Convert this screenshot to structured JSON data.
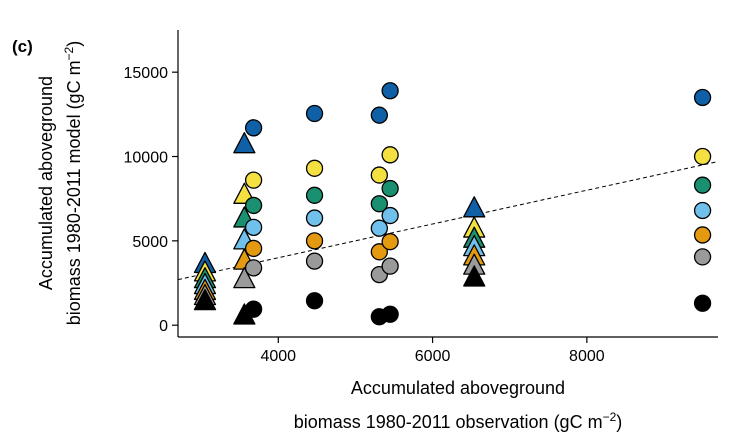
{
  "chart_data": {
    "type": "scatter",
    "panel_label": "(c)",
    "xlabel_line1": "Accumulated aboveground",
    "xlabel_line2": "biomass 1980-2011 observation (gC m",
    "ylabel_line1": "Accumulated aboveground",
    "ylabel_line2": "biomass 1980-2011 model (gC m",
    "unit_exponent": "−2",
    "unit_close": ")",
    "xlim": [
      2700,
      9700
    ],
    "ylim": [
      -700,
      17500
    ],
    "xticks": [
      4000,
      6000,
      8000
    ],
    "yticks": [
      0,
      5000,
      10000,
      15000
    ],
    "grid": false,
    "trend_line": {
      "style": "dashed",
      "x": [
        2700,
        9700
      ],
      "y": [
        2700,
        9700
      ]
    },
    "series": [
      {
        "color": "#1060a8",
        "values": [
          {
            "x": 3050,
            "y": 3600,
            "marker": "triangle"
          },
          {
            "x": 3560,
            "y": 10700,
            "marker": "triangle"
          },
          {
            "x": 3680,
            "y": 11700,
            "marker": "circle"
          },
          {
            "x": 4470,
            "y": 12550,
            "marker": "circle"
          },
          {
            "x": 5310,
            "y": 12450,
            "marker": "circle"
          },
          {
            "x": 5450,
            "y": 13900,
            "marker": "circle"
          },
          {
            "x": 6540,
            "y": 6900,
            "marker": "triangle"
          },
          {
            "x": 9500,
            "y": 13500,
            "marker": "circle"
          }
        ]
      },
      {
        "color": "#f4e040",
        "values": [
          {
            "x": 3050,
            "y": 3100,
            "marker": "triangle"
          },
          {
            "x": 3560,
            "y": 7700,
            "marker": "triangle"
          },
          {
            "x": 3680,
            "y": 8600,
            "marker": "circle"
          },
          {
            "x": 4470,
            "y": 9300,
            "marker": "circle"
          },
          {
            "x": 5310,
            "y": 8900,
            "marker": "circle"
          },
          {
            "x": 5450,
            "y": 10100,
            "marker": "circle"
          },
          {
            "x": 6540,
            "y": 5700,
            "marker": "triangle"
          },
          {
            "x": 9500,
            "y": 10000,
            "marker": "circle"
          }
        ]
      },
      {
        "color": "#1a9070",
        "values": [
          {
            "x": 3050,
            "y": 2700,
            "marker": "triangle"
          },
          {
            "x": 3560,
            "y": 6300,
            "marker": "triangle"
          },
          {
            "x": 3680,
            "y": 7100,
            "marker": "circle"
          },
          {
            "x": 4470,
            "y": 7700,
            "marker": "circle"
          },
          {
            "x": 5310,
            "y": 7200,
            "marker": "circle"
          },
          {
            "x": 5450,
            "y": 8100,
            "marker": "circle"
          },
          {
            "x": 6540,
            "y": 5100,
            "marker": "triangle"
          },
          {
            "x": 9500,
            "y": 8300,
            "marker": "circle"
          }
        ]
      },
      {
        "color": "#70c0ec",
        "values": [
          {
            "x": 3050,
            "y": 2350,
            "marker": "triangle"
          },
          {
            "x": 3560,
            "y": 5000,
            "marker": "triangle"
          },
          {
            "x": 3680,
            "y": 5800,
            "marker": "circle"
          },
          {
            "x": 4470,
            "y": 6350,
            "marker": "circle"
          },
          {
            "x": 5310,
            "y": 5750,
            "marker": "circle"
          },
          {
            "x": 5450,
            "y": 6500,
            "marker": "circle"
          },
          {
            "x": 6540,
            "y": 4600,
            "marker": "triangle"
          },
          {
            "x": 9500,
            "y": 6800,
            "marker": "circle"
          }
        ]
      },
      {
        "color": "#e49a10",
        "values": [
          {
            "x": 3050,
            "y": 2000,
            "marker": "triangle"
          },
          {
            "x": 3560,
            "y": 3800,
            "marker": "triangle"
          },
          {
            "x": 3680,
            "y": 4550,
            "marker": "circle"
          },
          {
            "x": 4470,
            "y": 5000,
            "marker": "circle"
          },
          {
            "x": 5310,
            "y": 4350,
            "marker": "circle"
          },
          {
            "x": 5450,
            "y": 4950,
            "marker": "circle"
          },
          {
            "x": 6540,
            "y": 4050,
            "marker": "triangle"
          },
          {
            "x": 9500,
            "y": 5350,
            "marker": "circle"
          }
        ]
      },
      {
        "color": "#9a9a9a",
        "values": [
          {
            "x": 3050,
            "y": 1700,
            "marker": "triangle"
          },
          {
            "x": 3560,
            "y": 2700,
            "marker": "triangle"
          },
          {
            "x": 3680,
            "y": 3400,
            "marker": "circle"
          },
          {
            "x": 4470,
            "y": 3800,
            "marker": "circle"
          },
          {
            "x": 5310,
            "y": 3000,
            "marker": "circle"
          },
          {
            "x": 5450,
            "y": 3500,
            "marker": "circle"
          },
          {
            "x": 6540,
            "y": 3500,
            "marker": "triangle"
          },
          {
            "x": 9500,
            "y": 4050,
            "marker": "circle"
          }
        ]
      },
      {
        "color": "#000000",
        "values": [
          {
            "x": 3050,
            "y": 1400,
            "marker": "triangle"
          },
          {
            "x": 3560,
            "y": 550,
            "marker": "triangle"
          },
          {
            "x": 3680,
            "y": 950,
            "marker": "circle"
          },
          {
            "x": 4470,
            "y": 1450,
            "marker": "circle"
          },
          {
            "x": 5310,
            "y": 500,
            "marker": "circle"
          },
          {
            "x": 5450,
            "y": 650,
            "marker": "circle"
          },
          {
            "x": 6540,
            "y": 2800,
            "marker": "triangle"
          },
          {
            "x": 9500,
            "y": 1300,
            "marker": "circle"
          }
        ]
      }
    ]
  }
}
